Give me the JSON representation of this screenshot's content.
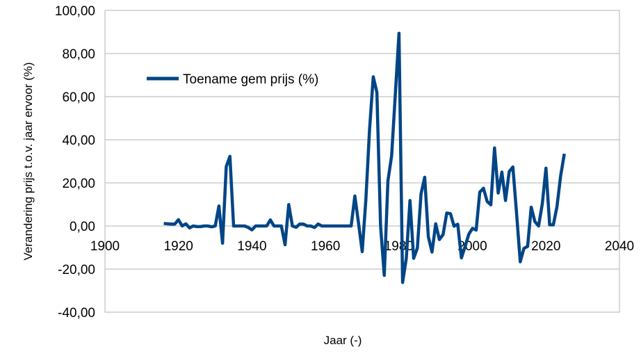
{
  "chart_data": {
    "type": "line",
    "title": "",
    "xlabel": "Jaar (-)",
    "ylabel": "Verandering prijs t.o.v. jaar ervoor (%)",
    "xlim": [
      1900,
      2040
    ],
    "ylim": [
      -40,
      100
    ],
    "x_ticks": [
      "1900",
      "1920",
      "1940",
      "1960",
      "1980",
      "2000",
      "2020",
      "2040"
    ],
    "y_ticks": [
      "-40,00",
      "-20,00",
      "0,00",
      "20,00",
      "40,00",
      "60,00",
      "80,00",
      "100,00"
    ],
    "grid": true,
    "legend_position": "upper-left",
    "series": [
      {
        "name": "Toename gem prijs (%)",
        "color": "#004586",
        "x": [
          1916,
          1917,
          1918,
          1919,
          1920,
          1921,
          1922,
          1923,
          1924,
          1925,
          1926,
          1927,
          1928,
          1929,
          1930,
          1931,
          1932,
          1933,
          1934,
          1935,
          1936,
          1937,
          1938,
          1939,
          1940,
          1941,
          1942,
          1943,
          1944,
          1945,
          1946,
          1947,
          1948,
          1949,
          1950,
          1951,
          1952,
          1953,
          1954,
          1955,
          1956,
          1957,
          1958,
          1959,
          1960,
          1961,
          1962,
          1963,
          1964,
          1965,
          1966,
          1967,
          1968,
          1969,
          1970,
          1971,
          1972,
          1973,
          1974,
          1975,
          1976,
          1977,
          1978,
          1979,
          1980,
          1981,
          1982,
          1983,
          1984,
          1985,
          1986,
          1987,
          1988,
          1989,
          1990,
          1991,
          1992,
          1993,
          1994,
          1995,
          1996,
          1997,
          1998,
          1999,
          2000,
          2001,
          2002,
          2003,
          2004,
          2005,
          2006,
          2007,
          2008,
          2009,
          2010,
          2011,
          2012,
          2013,
          2014,
          2015,
          2016,
          2017,
          2018,
          2019,
          2020,
          2021,
          2022,
          2023,
          2024,
          2025
        ],
        "y": [
          1.2,
          1.0,
          0.9,
          0.9,
          2.9,
          0.0,
          1.0,
          -0.9,
          0.0,
          -0.3,
          -0.3,
          0.0,
          0.0,
          -0.4,
          0.0,
          9.3,
          -8.0,
          27.5,
          32.3,
          0.0,
          0.0,
          0.0,
          0.0,
          -0.7,
          -1.8,
          0.0,
          0.0,
          0.0,
          0.0,
          2.8,
          0.0,
          0.0,
          0.0,
          -8.7,
          9.9,
          0.0,
          -0.6,
          0.9,
          0.9,
          0.0,
          0.0,
          -0.7,
          0.9,
          0.0,
          0.0,
          0.0,
          0.0,
          0.0,
          0.0,
          0.0,
          0.0,
          0.0,
          13.9,
          1.3,
          -11.9,
          12.5,
          45.0,
          69.2,
          62.0,
          0.0,
          -22.9,
          21.0,
          32.5,
          61.0,
          89.4,
          -26.2,
          -15.0,
          11.8,
          -15.0,
          -10.3,
          14.9,
          22.6,
          -5.0,
          -12.1,
          1.0,
          -6.3,
          -4.0,
          6.0,
          5.7,
          -0.1,
          0.8,
          -14.8,
          -9.5,
          -3.8,
          -1.1,
          -1.9,
          15.7,
          17.5,
          11.4,
          9.8,
          36.2,
          15.3,
          25.0,
          11.8,
          25.2,
          27.4,
          6.0,
          -16.6,
          -10.4,
          -9.5,
          8.7,
          2.0,
          0.0,
          10.2,
          26.8,
          0.5,
          0.5,
          8.9,
          23.2,
          33.5
        ]
      }
    ]
  }
}
